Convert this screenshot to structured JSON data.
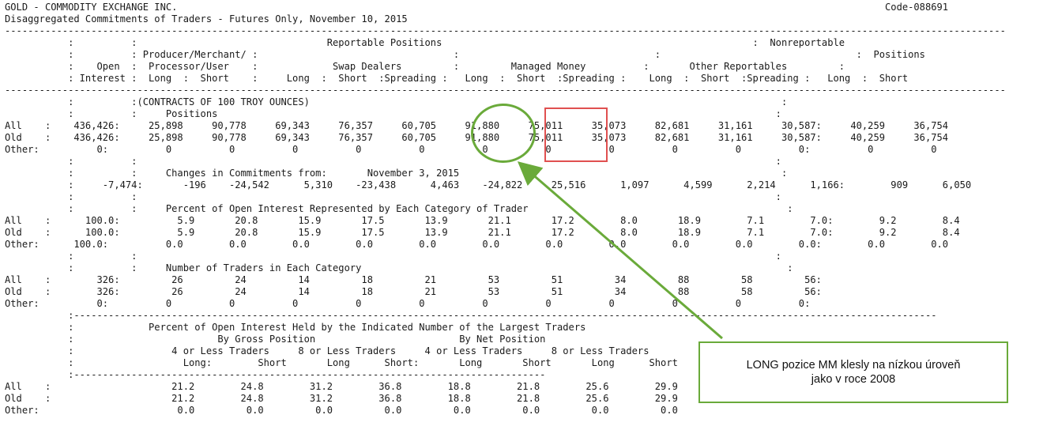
{
  "report": {
    "lines": [
      "GOLD - COMMODITY EXCHANGE INC.                                                                                                                           Code-088691",
      "Disaggregated Commitments of Traders - Futures Only, November 10, 2015",
      "------------------------------------------------------------------------------------------------------------------------------------------------------------------------------",
      "           :          :                                 Reportable Positions                                                      :  Nonreportable",
      "           :          : Producer/Merchant/ :                                  :                                  :                                  :  Positions",
      "           :    Open  :  Processor/User    :             Swap Dealers         :         Managed Money          :       Other Reportables         :",
      "           : Interest :  Long  :  Short    :     Long  :  Short  :Spreading :   Long  :  Short  :Spreading :    Long  :  Short  :Spreading :   Long  :  Short",
      "------------------------------------------------------------------------------------------------------------------------------------------------------------------------------",
      "           :          :(CONTRACTS OF 100 TROY OUNCES)                                                                                  :",
      "           :          :     Positions                                                                                                 :",
      "All    :    436,426:     25,898     90,778     69,343     76,357     60,705     91,880     75,011     35,073     82,681     31,161     30,587:     40,259     36,754",
      "Old    :    436,426:     25,898     90,778     69,343     76,357     60,705     91,880     75,011     35,073     82,681     31,161     30,587:     40,259     36,754",
      "Other:          0:          0          0          0          0          0          0          0          0          0          0          0:          0          0",
      "           :          :                                                                                                               :",
      "           :          :     Changes in Commitments from:       November 3, 2015                                                        :",
      "           :     -7,474:       -196    -24,542      5,310    -23,438      4,463    -24,822     25,516      1,097      4,599      2,214      1,166:        909      6,050",
      "           :          :                                                                                                               :",
      "           :          :     Percent of Open Interest Represented by Each Category of Trader                                             :",
      "All    :      100.0:          5.9       20.8       15.9       17.5       13.9       21.1       17.2        8.0       18.9        7.1        7.0:        9.2        8.4",
      "Old    :      100.0:          5.9       20.8       15.9       17.5       13.9       21.1       17.2        8.0       18.9        7.1        7.0:        9.2        8.4",
      "Other:      100.0:          0.0        0.0        0.0        0.0        0.0        0.0        0.0        0.0        0.0        0.0        0.0:        0.0        0.0",
      "           :          :                                                                                                               :",
      "           :          :     Number of Traders in Each Category                                                                          :",
      "All    :        326:         26         24         14         18         21         53         51         34         88         58         56:",
      "Old    :        326:         26         24         14         18         21         53         51         34         88         58         56:",
      "Other:          0:          0          0          0          0          0          0          0          0          0          0          0:",
      "           :------------------------------------------------------------------------------------------------------------------------------------------------------",
      "           :             Percent of Open Interest Held by the Indicated Number of the Largest Traders",
      "           :                         By Gross Position                         By Net Position",
      "           :                 4 or Less Traders     8 or Less Traders     4 or Less Traders     8 or Less Traders",
      "           :                   Long:        Short       Long      Short:       Long       Short       Long      Short",
      "           :----------------------------------------------------------------------------------",
      "All    :                     21.2        24.8        31.2        36.8        18.8        21.8        25.6        29.9",
      "Old    :                     21.2        24.8        31.2        36.8        18.8        21.8        25.6        29.9",
      "Other:                        0.0         0.0         0.0         0.0         0.0         0.0         0.0         0.0"
    ]
  },
  "annotations": {
    "callout_text": "LONG pozice MM klesly na nízkou úroveň\njako v roce 2008",
    "circle_color": "#6aaa3a",
    "box_color": "#e05050",
    "arrow_color": "#6aaa3a"
  }
}
